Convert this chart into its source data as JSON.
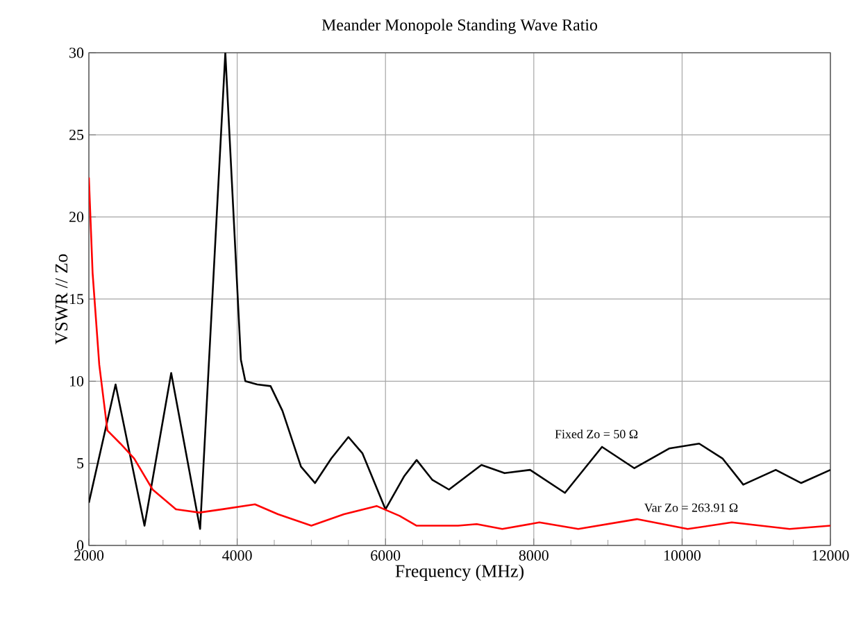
{
  "chart_data": {
    "type": "line",
    "title": "Meander Monopole Standing Wave Ratio",
    "xlabel": "Frequency (MHz)",
    "ylabel": "VSWR // Zo",
    "xlim": [
      2000,
      12000
    ],
    "xticks": [
      2000,
      4000,
      6000,
      8000,
      10000,
      12000
    ],
    "ylim": [
      0,
      30
    ],
    "yticks": [
      0,
      5,
      10,
      15,
      20,
      25,
      30
    ],
    "grid": true,
    "series": [
      {
        "name": "Fixed Zo = 50 Ω",
        "color": "#000000",
        "x": [
          2000,
          2360,
          2750,
          3110,
          3500,
          3840,
          4050,
          4110,
          4270,
          4450,
          4610,
          4860,
          5050,
          5270,
          5500,
          5690,
          6000,
          6250,
          6420,
          6630,
          6856,
          7294,
          7606,
          7950,
          8420,
          8920,
          9356,
          9825,
          10230,
          10544,
          10825,
          11263,
          11606,
          12000
        ],
        "values": [
          2.6,
          9.8,
          1.2,
          10.5,
          1.0,
          30,
          11.3,
          10,
          9.8,
          9.7,
          8.2,
          4.8,
          3.8,
          5.3,
          6.6,
          5.6,
          2.2,
          4.2,
          5.2,
          4.0,
          3.4,
          4.9,
          4.4,
          4.6,
          3.2,
          6.0,
          4.7,
          5.9,
          6.2,
          5.3,
          3.7,
          4.6,
          3.8,
          4.6
        ]
      },
      {
        "name": "Var Zo = 263.91 Ω",
        "color": "#ff0000",
        "x": [
          2000,
          2050,
          2140,
          2250,
          2425,
          2610,
          2860,
          3175,
          3490,
          3800,
          4240,
          4550,
          5000,
          5440,
          5880,
          6190,
          6420,
          6690,
          6980,
          7230,
          7575,
          8075,
          8600,
          9390,
          10075,
          10670,
          11450,
          12000
        ],
        "values": [
          22.4,
          16.6,
          11,
          7,
          6.2,
          5.3,
          3.4,
          2.2,
          2.0,
          2.2,
          2.5,
          1.9,
          1.2,
          1.9,
          2.4,
          1.8,
          1.2,
          1.2,
          1.2,
          1.3,
          1.0,
          1.4,
          1.0,
          1.6,
          1.0,
          1.4,
          1.0,
          1.2
        ]
      }
    ]
  }
}
